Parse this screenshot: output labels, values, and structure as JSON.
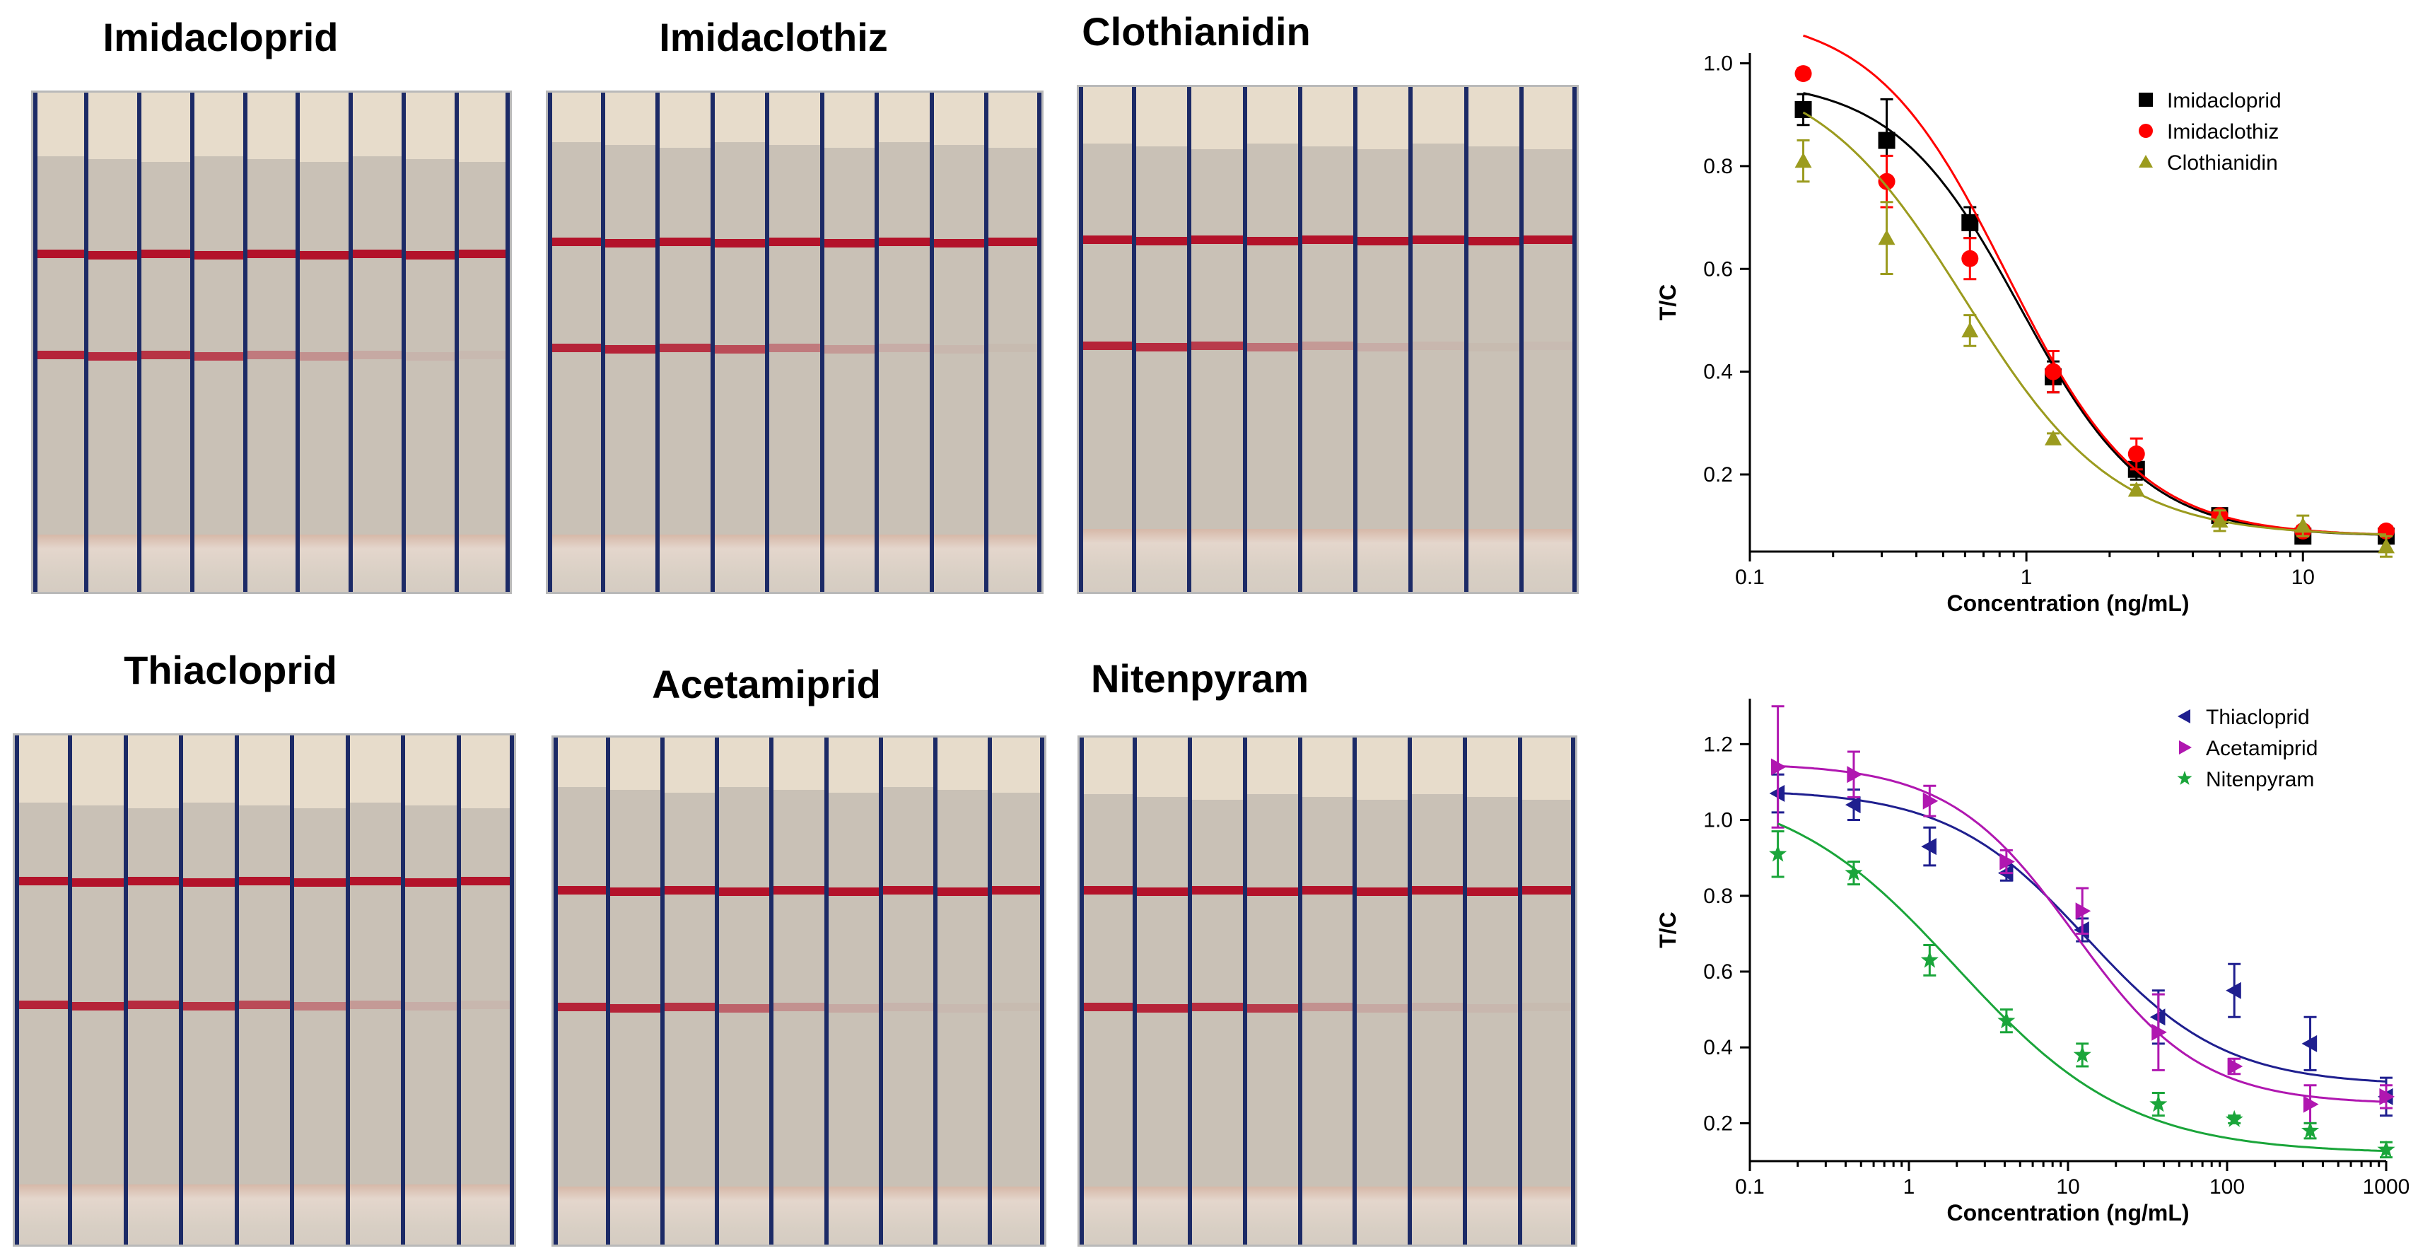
{
  "colors": {
    "strip_background": "#c9c1b6",
    "strip_cap": "#e7dccb",
    "strip_pad": "#d8cfc4",
    "divider": "#1c2a66",
    "band_red": "#b3122a"
  },
  "strip_panels": [
    {
      "title": "Imidacloprid",
      "control_intensity": [
        1,
        1,
        1,
        1,
        1,
        1,
        1,
        1,
        1
      ],
      "test_intensity": [
        1.0,
        0.95,
        0.9,
        0.8,
        0.45,
        0.3,
        0.15,
        0.08,
        0.05
      ]
    },
    {
      "title": "Imidaclothiz",
      "control_intensity": [
        1,
        1,
        1,
        1,
        1,
        1,
        1,
        1,
        1
      ],
      "test_intensity": [
        1.0,
        1.0,
        0.9,
        0.75,
        0.45,
        0.25,
        0.12,
        0.06,
        0.04
      ]
    },
    {
      "title": "Clothianidin",
      "control_intensity": [
        1,
        1,
        1,
        1,
        1,
        1,
        1,
        1,
        1
      ],
      "test_intensity": [
        1.0,
        0.95,
        0.85,
        0.5,
        0.25,
        0.12,
        0.06,
        0.04,
        0.03
      ]
    },
    {
      "title": "Thiacloprid",
      "control_intensity": [
        1,
        1,
        1,
        1,
        1,
        1,
        1,
        1,
        1
      ],
      "test_intensity": [
        1.0,
        1.0,
        0.95,
        0.9,
        0.75,
        0.45,
        0.25,
        0.12,
        0.06
      ]
    },
    {
      "title": "Acetamiprid",
      "control_intensity": [
        1,
        1,
        1,
        1,
        1,
        1,
        1,
        1,
        1
      ],
      "test_intensity": [
        1.0,
        1.0,
        0.9,
        0.6,
        0.3,
        0.15,
        0.08,
        0.05,
        0.04
      ]
    },
    {
      "title": "Nitenpyram",
      "control_intensity": [
        1,
        1,
        1,
        1,
        1,
        1,
        1,
        1,
        1
      ],
      "test_intensity": [
        1.0,
        1.0,
        0.95,
        0.85,
        0.3,
        0.15,
        0.1,
        0.06,
        0.04
      ]
    }
  ],
  "chart_data": [
    {
      "type": "scatter",
      "xscale": "log",
      "xlabel": "Concentration (ng/mL)",
      "ylabel": "T/C",
      "xlim": [
        0.1,
        20
      ],
      "ylim": [
        0.05,
        1.02
      ],
      "xticks": [
        0.1,
        1,
        10
      ],
      "xtick_labels": [
        "0.1",
        "1",
        "10"
      ],
      "yticks": [
        0.2,
        0.4,
        0.6,
        0.8,
        1.0
      ],
      "ytick_labels": [
        "0.2",
        "0.4",
        "0.6",
        "0.8",
        "1.0"
      ],
      "legend_position": "top-right",
      "series": [
        {
          "name": "Imidacloprid",
          "color": "#000000",
          "marker": "square",
          "x": [
            0.156,
            0.3125,
            0.625,
            1.25,
            2.5,
            5,
            10,
            20
          ],
          "y": [
            0.91,
            0.85,
            0.69,
            0.39,
            0.21,
            0.12,
            0.08,
            0.08
          ],
          "err": [
            0.03,
            0.08,
            0.03,
            0.03,
            0.02,
            0.01,
            0.01,
            0.01
          ],
          "fit": {
            "top": 0.97,
            "bottom": 0.08,
            "ec50": 0.95,
            "hill": 1.9
          }
        },
        {
          "name": "Imidaclothiz",
          "color": "#ff0000",
          "marker": "circle",
          "x": [
            0.156,
            0.3125,
            0.625,
            1.25,
            2.5,
            5,
            10,
            20
          ],
          "y": [
            0.98,
            0.77,
            0.62,
            0.4,
            0.24,
            0.12,
            0.09,
            0.09
          ],
          "err": [
            0.01,
            0.05,
            0.04,
            0.04,
            0.03,
            0.01,
            0.01,
            0.01
          ],
          "fit": {
            "top": 1.1,
            "bottom": 0.08,
            "ec50": 0.85,
            "hill": 1.8
          }
        },
        {
          "name": "Clothianidin",
          "color": "#9b9b1e",
          "marker": "triangle",
          "x": [
            0.156,
            0.3125,
            0.625,
            1.25,
            2.5,
            5,
            10,
            20
          ],
          "y": [
            0.81,
            0.66,
            0.48,
            0.27,
            0.17,
            0.11,
            0.1,
            0.06
          ],
          "err": [
            0.04,
            0.07,
            0.03,
            0.01,
            0.01,
            0.02,
            0.02,
            0.02
          ],
          "fit": {
            "top": 1.0,
            "bottom": 0.08,
            "ec50": 0.6,
            "hill": 1.6
          }
        }
      ]
    },
    {
      "type": "scatter",
      "xscale": "log",
      "xlabel": "Concentration (ng/mL)",
      "ylabel": "T/C",
      "xlim": [
        0.1,
        1000
      ],
      "ylim": [
        0.1,
        1.32
      ],
      "xticks": [
        0.1,
        1,
        10,
        100,
        1000
      ],
      "xtick_labels": [
        "0.1",
        "1",
        "10",
        "100",
        "1000"
      ],
      "yticks": [
        0.2,
        0.4,
        0.6,
        0.8,
        1.0,
        1.2
      ],
      "ytick_labels": [
        "0.2",
        "0.4",
        "0.6",
        "0.8",
        "1.0",
        "1.2"
      ],
      "legend_position": "top-right",
      "series": [
        {
          "name": "Thiacloprid",
          "color": "#1f1f8f",
          "marker": "triangle-left",
          "x": [
            0.15,
            0.45,
            1.35,
            4.1,
            12.3,
            37,
            111,
            333,
            1000
          ],
          "y": [
            1.07,
            1.04,
            0.93,
            0.86,
            0.71,
            0.48,
            0.55,
            0.41,
            0.27
          ],
          "err": [
            0.05,
            0.04,
            0.05,
            0.02,
            0.03,
            0.07,
            0.07,
            0.07,
            0.05
          ],
          "fit": {
            "top": 1.08,
            "bottom": 0.3,
            "ec50": 13,
            "hill": 1.0
          }
        },
        {
          "name": "Acetamiprid",
          "color": "#b017b0",
          "marker": "triangle-right",
          "x": [
            0.15,
            0.45,
            1.35,
            4.1,
            12.3,
            37,
            111,
            333,
            1000
          ],
          "y": [
            1.14,
            1.12,
            1.05,
            0.89,
            0.76,
            0.44,
            0.35,
            0.25,
            0.27
          ],
          "err": [
            0.16,
            0.06,
            0.04,
            0.03,
            0.06,
            0.1,
            0.02,
            0.05,
            0.03
          ],
          "fit": {
            "top": 1.15,
            "bottom": 0.25,
            "ec50": 11,
            "hill": 1.1
          }
        },
        {
          "name": "Nitenpyram",
          "color": "#1aa53a",
          "marker": "star",
          "x": [
            0.15,
            0.45,
            1.35,
            4.1,
            12.3,
            37,
            111,
            333,
            1000
          ],
          "y": [
            0.91,
            0.86,
            0.63,
            0.47,
            0.38,
            0.25,
            0.21,
            0.18,
            0.13
          ],
          "err": [
            0.06,
            0.03,
            0.04,
            0.03,
            0.03,
            0.03,
            0.01,
            0.02,
            0.02
          ],
          "fit": {
            "top": 1.1,
            "bottom": 0.12,
            "ec50": 2.0,
            "hill": 0.8
          }
        }
      ]
    }
  ]
}
